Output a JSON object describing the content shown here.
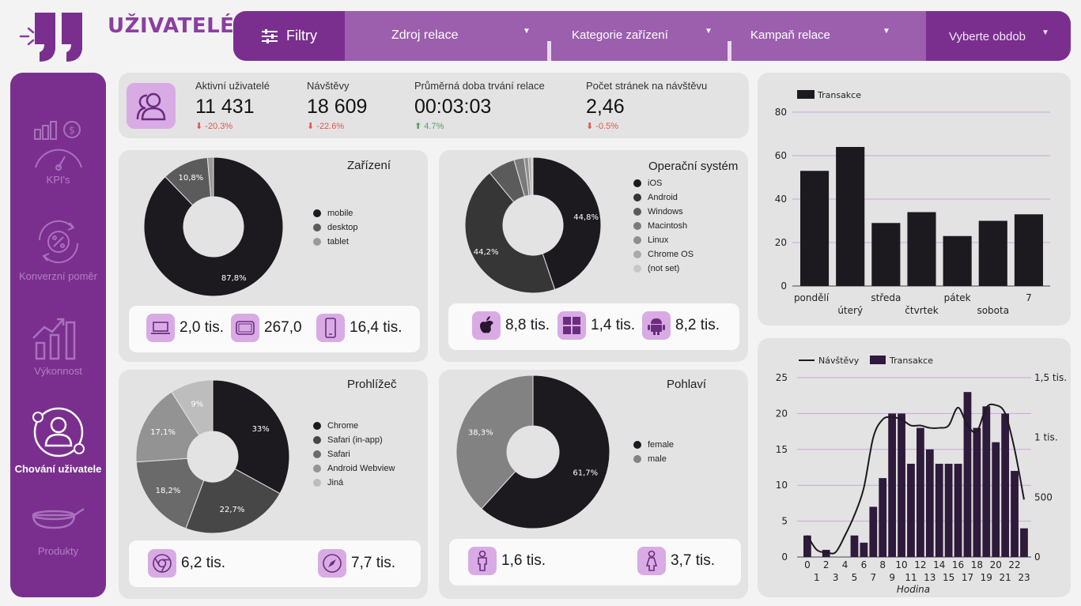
{
  "header": {
    "title": "UŽIVATELÉ"
  },
  "filters": {
    "filter_label": "Filtry",
    "session_source": "Zdroj relace",
    "device_category": "Kategorie zařízení",
    "campaign": "Kampaň relace",
    "period": "Vyberte obdob"
  },
  "sidebar": {
    "items": [
      {
        "label": "KPI's"
      },
      {
        "label": "Konverzní poměr"
      },
      {
        "label": "Výkonnost"
      },
      {
        "label": "Chování uživatele"
      },
      {
        "label": "Produkty"
      }
    ]
  },
  "kpis": [
    {
      "label": "Aktivní uživatelé",
      "value": "11 431",
      "delta": "-20.3%"
    },
    {
      "label": "Návštěvy",
      "value": "18 609",
      "delta": "-22.6%"
    },
    {
      "label": "Průměrná doba trvání relace",
      "value": "00:03:03",
      "delta": "4.7%"
    },
    {
      "label": "Počet stránek na návštěvu",
      "value": "2,46",
      "delta": "-0.5%"
    }
  ],
  "devices": {
    "title": "Zařízení",
    "legend": [
      "mobile",
      "desktop",
      "tablet"
    ],
    "stats": [
      "2,0 tis.",
      "267,0",
      "16,4 tis."
    ]
  },
  "os": {
    "title": "Operační systém",
    "legend": [
      "iOS",
      "Android",
      "Windows",
      "Macintosh",
      "Linux",
      "Chrome OS",
      "(not set)"
    ],
    "stats": [
      "8,8 tis.",
      "1,4 tis.",
      "8,2 tis."
    ]
  },
  "browser": {
    "title": "Prohlížeč",
    "legend": [
      "Chrome",
      "Safari (in-app)",
      "Safari",
      "Android Webview",
      "Jiná"
    ],
    "stats": [
      "6,2 tis.",
      "7,7 tis."
    ]
  },
  "gender": {
    "title": "Pohlaví",
    "legend": [
      "female",
      "male"
    ],
    "stats": [
      "1,6 tis.",
      "3,7 tis."
    ]
  },
  "colors": {
    "purple_dark": "#7a2f8f",
    "purple_mid": "#9b5fad",
    "icon_bg": "#d9abe5",
    "ink": "#1c1a1e",
    "bar_dark": "#2e1a3b"
  },
  "chart_data": [
    {
      "type": "pie",
      "title": "Zařízení",
      "labels": [
        "mobile",
        "desktop",
        "tablet"
      ],
      "values": [
        87.8,
        10.8,
        1.4
      ],
      "data_labels": [
        "87,8%",
        "10,8%",
        ""
      ],
      "colors": [
        "#1c1a1e",
        "#5b5b5b",
        "#9a9a9a"
      ]
    },
    {
      "type": "pie",
      "title": "Operační systém",
      "labels": [
        "iOS",
        "Android",
        "Windows",
        "Macintosh",
        "Linux",
        "Chrome OS",
        "(not set)"
      ],
      "values": [
        44.8,
        44.2,
        6.5,
        2.4,
        1.0,
        0.7,
        0.4
      ],
      "data_labels": [
        "44,8%",
        "44,2%",
        "",
        "",
        "",
        "",
        ""
      ],
      "colors": [
        "#1c1a1e",
        "#363636",
        "#5b5b5b",
        "#7a7a7a",
        "#8e8e8e",
        "#aaaaaa",
        "#c8c8c8"
      ]
    },
    {
      "type": "pie",
      "title": "Prohlížeč",
      "labels": [
        "Chrome",
        "Safari (in-app)",
        "Safari",
        "Android Webview",
        "Jiná"
      ],
      "values": [
        33,
        22.7,
        18.2,
        17.1,
        9
      ],
      "data_labels": [
        "33%",
        "22,7%",
        "18,2%",
        "17,1%",
        "9%"
      ],
      "colors": [
        "#1c1a1e",
        "#474747",
        "#6a6a6a",
        "#939393",
        "#bdbdbd"
      ]
    },
    {
      "type": "pie",
      "title": "Pohlaví",
      "labels": [
        "female",
        "male"
      ],
      "values": [
        61.7,
        38.3
      ],
      "data_labels": [
        "61,7%",
        "38,3%"
      ],
      "colors": [
        "#1c1a1e",
        "#828282"
      ]
    },
    {
      "type": "bar",
      "legend": [
        "Transakce"
      ],
      "categories": [
        "pondělí",
        "úterý",
        "středa",
        "čtvrtek",
        "pátek",
        "sobota",
        "7"
      ],
      "values": [
        53,
        64,
        29,
        34,
        23,
        30,
        33
      ],
      "ylim": [
        0,
        80
      ],
      "yticks": [
        0,
        20,
        40,
        60,
        80
      ]
    },
    {
      "type": "bar+line",
      "legend": [
        "Návštěvy",
        "Transakce"
      ],
      "xlabel": "Hodina",
      "x": [
        0,
        1,
        2,
        3,
        4,
        5,
        6,
        7,
        8,
        9,
        10,
        11,
        12,
        13,
        14,
        15,
        16,
        17,
        18,
        19,
        20,
        21,
        22,
        23
      ],
      "series": [
        {
          "name": "Transakce",
          "axis": "left",
          "values": [
            3,
            0,
            1,
            0,
            0,
            3,
            2,
            7,
            11,
            20,
            20,
            13,
            18,
            15,
            13,
            13,
            13,
            23,
            18,
            21,
            16,
            20,
            12,
            4
          ]
        },
        {
          "name": "Návštěvy",
          "axis": "right",
          "values": [
            180,
            60,
            40,
            40,
            180,
            350,
            580,
            1000,
            1150,
            1170,
            1150,
            1100,
            1100,
            1080,
            1080,
            1100,
            1250,
            1100,
            1050,
            1250,
            1270,
            1200,
            900,
            480
          ]
        }
      ],
      "ylim_left": [
        0,
        25
      ],
      "yticks_left": [
        0,
        5,
        10,
        15,
        20,
        25
      ],
      "ylim_right": [
        0,
        1500
      ],
      "yticks_right": [
        "0",
        "500",
        "1 tis.",
        "1,5 tis."
      ]
    }
  ]
}
